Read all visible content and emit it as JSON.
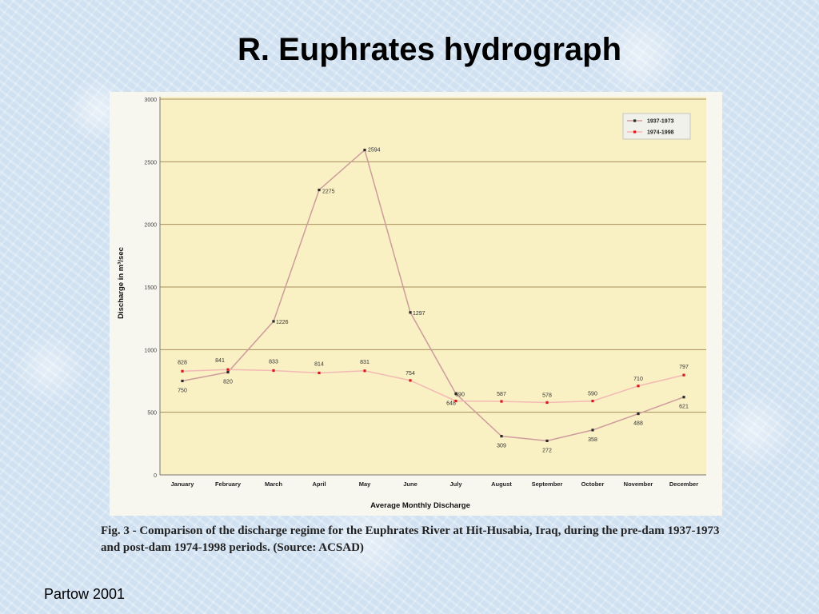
{
  "slide": {
    "title": "R. Euphrates hydrograph",
    "credit": "Partow 2001"
  },
  "caption": "Fig. 3 - Comparison of the discharge regime for the Euphrates River at Hit-Husabia, Iraq, during the pre-dam 1937-1973 and post-dam 1974-1998 periods. (Source: ACSAD)",
  "colors": {
    "plot_background": "#f9f0c4",
    "gridline": "#a58f5c",
    "series_pre_dam": "#cd9c9c",
    "series_post_dam": "#f3b9b4",
    "marker_pre_dam": "#2a2a2a",
    "marker_post_dam": "#d8191c"
  },
  "chart_data": {
    "type": "line",
    "xlabel": "Average Monthly Discharge",
    "ylabel": "Discharge in m³/sec",
    "categories": [
      "January",
      "February",
      "March",
      "April",
      "May",
      "June",
      "July",
      "August",
      "September",
      "October",
      "November",
      "December"
    ],
    "ylim": [
      0,
      3000
    ],
    "yticks": [
      0,
      500,
      1000,
      1500,
      2000,
      2500,
      3000
    ],
    "grid": true,
    "legend_position": "top-right",
    "series": [
      {
        "name": "1937-1973",
        "values": [
          750,
          820,
          1226,
          2275,
          2594,
          1297,
          648,
          309,
          272,
          358,
          488,
          621
        ],
        "labels": [
          "750",
          "820",
          "1226",
          "2275",
          "2594",
          "1297",
          "648",
          "309",
          "272",
          "358",
          "488",
          "621"
        ]
      },
      {
        "name": "1974-1998",
        "values": [
          828,
          841,
          833,
          814,
          831,
          754,
          590,
          587,
          578,
          590,
          710,
          797
        ],
        "labels": [
          "828",
          "841",
          "833",
          "814",
          "831",
          "754",
          "590",
          "587",
          "578",
          "590",
          "710",
          "797"
        ]
      }
    ]
  }
}
